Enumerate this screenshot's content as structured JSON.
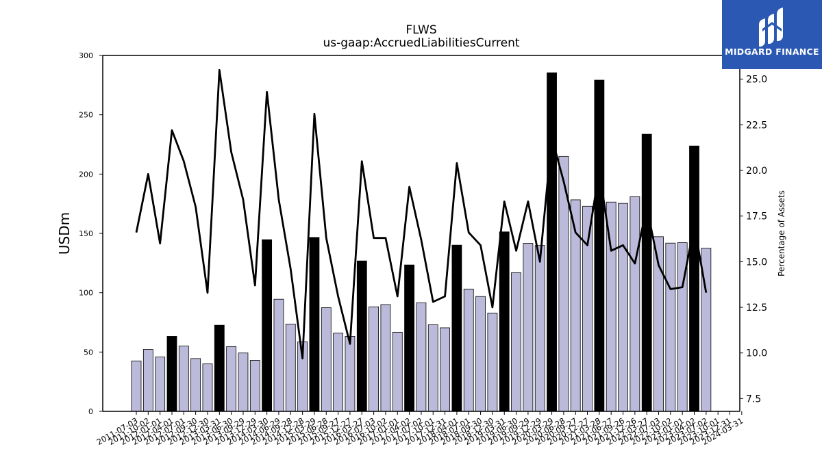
{
  "logo": {
    "text": "MIDGARD FINANCE",
    "icon": "midgard-logo-icon",
    "bg_color": "#2a58b2"
  },
  "colors": {
    "regular_bar": "#bcbadb",
    "q4_bar": "#000000",
    "line": "#000000"
  },
  "chart_data": {
    "type": "bar",
    "title": "FLWS",
    "subtitle": "us-gaap:AccruedLiabilitiesCurrent",
    "ylabel": "USDm",
    "y2label": "Percentage of Assets",
    "ylim": [
      0,
      300
    ],
    "yticks": [
      0,
      50,
      100,
      150,
      200,
      250,
      300
    ],
    "y2lim": [
      6.8,
      26.3
    ],
    "y2ticks": [
      "7.5",
      "10.0",
      "12.5",
      "15.0",
      "17.5",
      "20.0",
      "22.5",
      "25.0"
    ],
    "categories": [
      "2011-07-03",
      "2011-10-02",
      "2012-01-01",
      "2012-04-01",
      "2012-07-01",
      "2012-09-30",
      "2012-12-30",
      "2013-03-31",
      "2013-06-30",
      "2013-09-29",
      "2013-12-29",
      "2014-03-30",
      "2014-06-29",
      "2014-09-28",
      "2014-12-28",
      "2015-03-29",
      "2015-06-28",
      "2015-09-27",
      "2015-12-27",
      "2016-03-27",
      "2016-07-03",
      "2016-10-02",
      "2017-01-01",
      "2017-04-02",
      "2017-07-02",
      "2017-10-01",
      "2017-12-31",
      "2018-04-01",
      "2018-07-01",
      "2018-09-30",
      "2018-12-30",
      "2019-03-31",
      "2019-06-30",
      "2019-09-29",
      "2019-12-29",
      "2020-03-29",
      "2020-06-28",
      "2020-09-27",
      "2020-12-27",
      "2021-03-28",
      "2021-06-27",
      "2021-09-26",
      "2021-12-26",
      "2022-03-27",
      "2022-07-03",
      "2022-10-02",
      "2023-01-01",
      "2023-04-02",
      "2023-07-02",
      "2023-10-01",
      "2023-12-31",
      "2024-03-31"
    ],
    "xtick_labels": [
      "2011-07-03",
      "2011-10-02",
      "2012-01-01",
      "2012-04-01",
      "2012-07-01",
      "2012-09-30",
      "2012-12-30",
      "2013-03-31",
      "2013-06-30",
      "2013-09-29",
      "2013-12-29",
      "2014-03-30",
      "2014-06-29",
      "2014-09-28",
      "2014-12-28",
      "2015-03-29",
      "2015-06-28",
      "2015-09-27",
      "2015-12-27",
      "2016-03-27",
      "2016-07-03",
      "2016-10-02",
      "2017-01-01",
      "2017-04-02",
      "2017-07-02",
      "2017-10-01",
      "2017-12-31",
      "2018-04-01",
      "2018-07-01",
      "2018-09-30",
      "2018-12-30",
      "2019-03-31",
      "2019-06-30",
      "2019-09-29",
      "2019-12-29",
      "2020-03-29",
      "2020-06-28",
      "2020-09-27",
      "2020-12-27",
      "2021-03-28",
      "2021-06-27",
      "2021-09-26",
      "2021-12-26",
      "2022-03-27",
      "2022-07-03",
      "2022-10-02",
      "2023-01-01",
      "2023-04-02",
      "2023-07-02",
      "2023-10-01",
      "2023-12-31",
      "2024-03-31"
    ],
    "values": [
      42.5,
      52.2,
      45.8,
      63.2,
      55.1,
      44.5,
      40.0,
      72.6,
      54.6,
      49.2,
      43.0,
      144.7,
      94.5,
      73.6,
      58.6,
      146.6,
      87.4,
      65.9,
      63.2,
      126.8,
      88.1,
      90.0,
      66.7,
      123.4,
      91.5,
      73.0,
      70.4,
      140.1,
      103.1,
      96.8,
      82.9,
      151.3,
      116.9,
      141.6,
      139.8,
      285.4,
      215.0,
      178.3,
      172.9,
      279.2,
      176.4,
      175.3,
      180.9,
      233.6,
      147.2,
      141.8,
      142.2,
      223.7,
      137.6,
      0,
      0,
      0
    ],
    "q4_flags": [
      0,
      0,
      0,
      1,
      0,
      0,
      0,
      1,
      0,
      0,
      0,
      1,
      0,
      0,
      0,
      1,
      0,
      0,
      0,
      1,
      0,
      0,
      0,
      1,
      0,
      0,
      0,
      1,
      0,
      0,
      0,
      1,
      0,
      0,
      0,
      1,
      0,
      0,
      0,
      1,
      0,
      0,
      0,
      1,
      0,
      0,
      0,
      1,
      0,
      0,
      0,
      0
    ],
    "pct_assets": [
      16.6,
      19.8,
      16.0,
      22.2,
      20.5,
      18.0,
      13.3,
      25.5,
      21.0,
      18.4,
      13.7,
      24.3,
      18.4,
      14.6,
      9.7,
      23.1,
      16.3,
      13.1,
      10.5,
      20.5,
      16.3,
      16.3,
      13.1,
      19.1,
      16.2,
      12.8,
      13.1,
      20.4,
      16.6,
      15.9,
      12.5,
      18.3,
      15.6,
      18.3,
      15.0,
      21.8,
      19.4,
      16.6,
      15.9,
      20.0,
      15.6,
      15.9,
      14.9,
      18.0,
      14.8,
      13.5,
      13.6,
      17.0,
      13.3,
      null,
      null,
      null
    ]
  }
}
